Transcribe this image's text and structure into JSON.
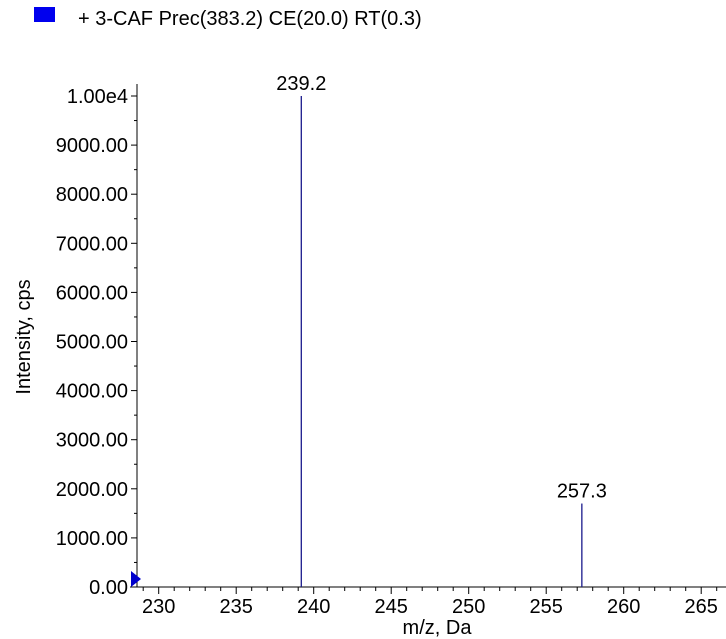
{
  "legend": {
    "entries": [
      {
        "label": "+ 3-CAF Prec(383.2) CE(20.0) RT(0.3)",
        "color": "#0000ee"
      }
    ]
  },
  "colors": {
    "series": "#1a1a8c",
    "legend_swatch": "#0000ee",
    "axis": "#000000",
    "marker": "#0000cc"
  },
  "chart_data": {
    "type": "bar",
    "subtype": "mass-spectrum-sticks",
    "xlabel": "m/z, Da",
    "ylabel": "Intensity, cps",
    "xlim": [
      228.6,
      266.6
    ],
    "ylim": [
      0,
      10000
    ],
    "x_ticks": [
      230,
      235,
      240,
      245,
      250,
      255,
      260,
      265
    ],
    "y_tick_values": [
      0,
      1000,
      2000,
      3000,
      4000,
      5000,
      6000,
      7000,
      8000,
      9000,
      10000
    ],
    "y_tick_labels": [
      "0.00",
      "1000.00",
      "2000.00",
      "3000.00",
      "4000.00",
      "5000.00",
      "6000.00",
      "7000.00",
      "8000.00",
      "9000.00",
      "1.00e4"
    ],
    "series": [
      {
        "name": "+ 3-CAF Prec(383.2) CE(20.0) RT(0.3)",
        "points": [
          {
            "x": 239.2,
            "y": 10000,
            "label": "239.2"
          },
          {
            "x": 257.3,
            "y": 1700,
            "label": "257.3"
          }
        ]
      }
    ],
    "grid": false,
    "legend_position": "top-left"
  }
}
